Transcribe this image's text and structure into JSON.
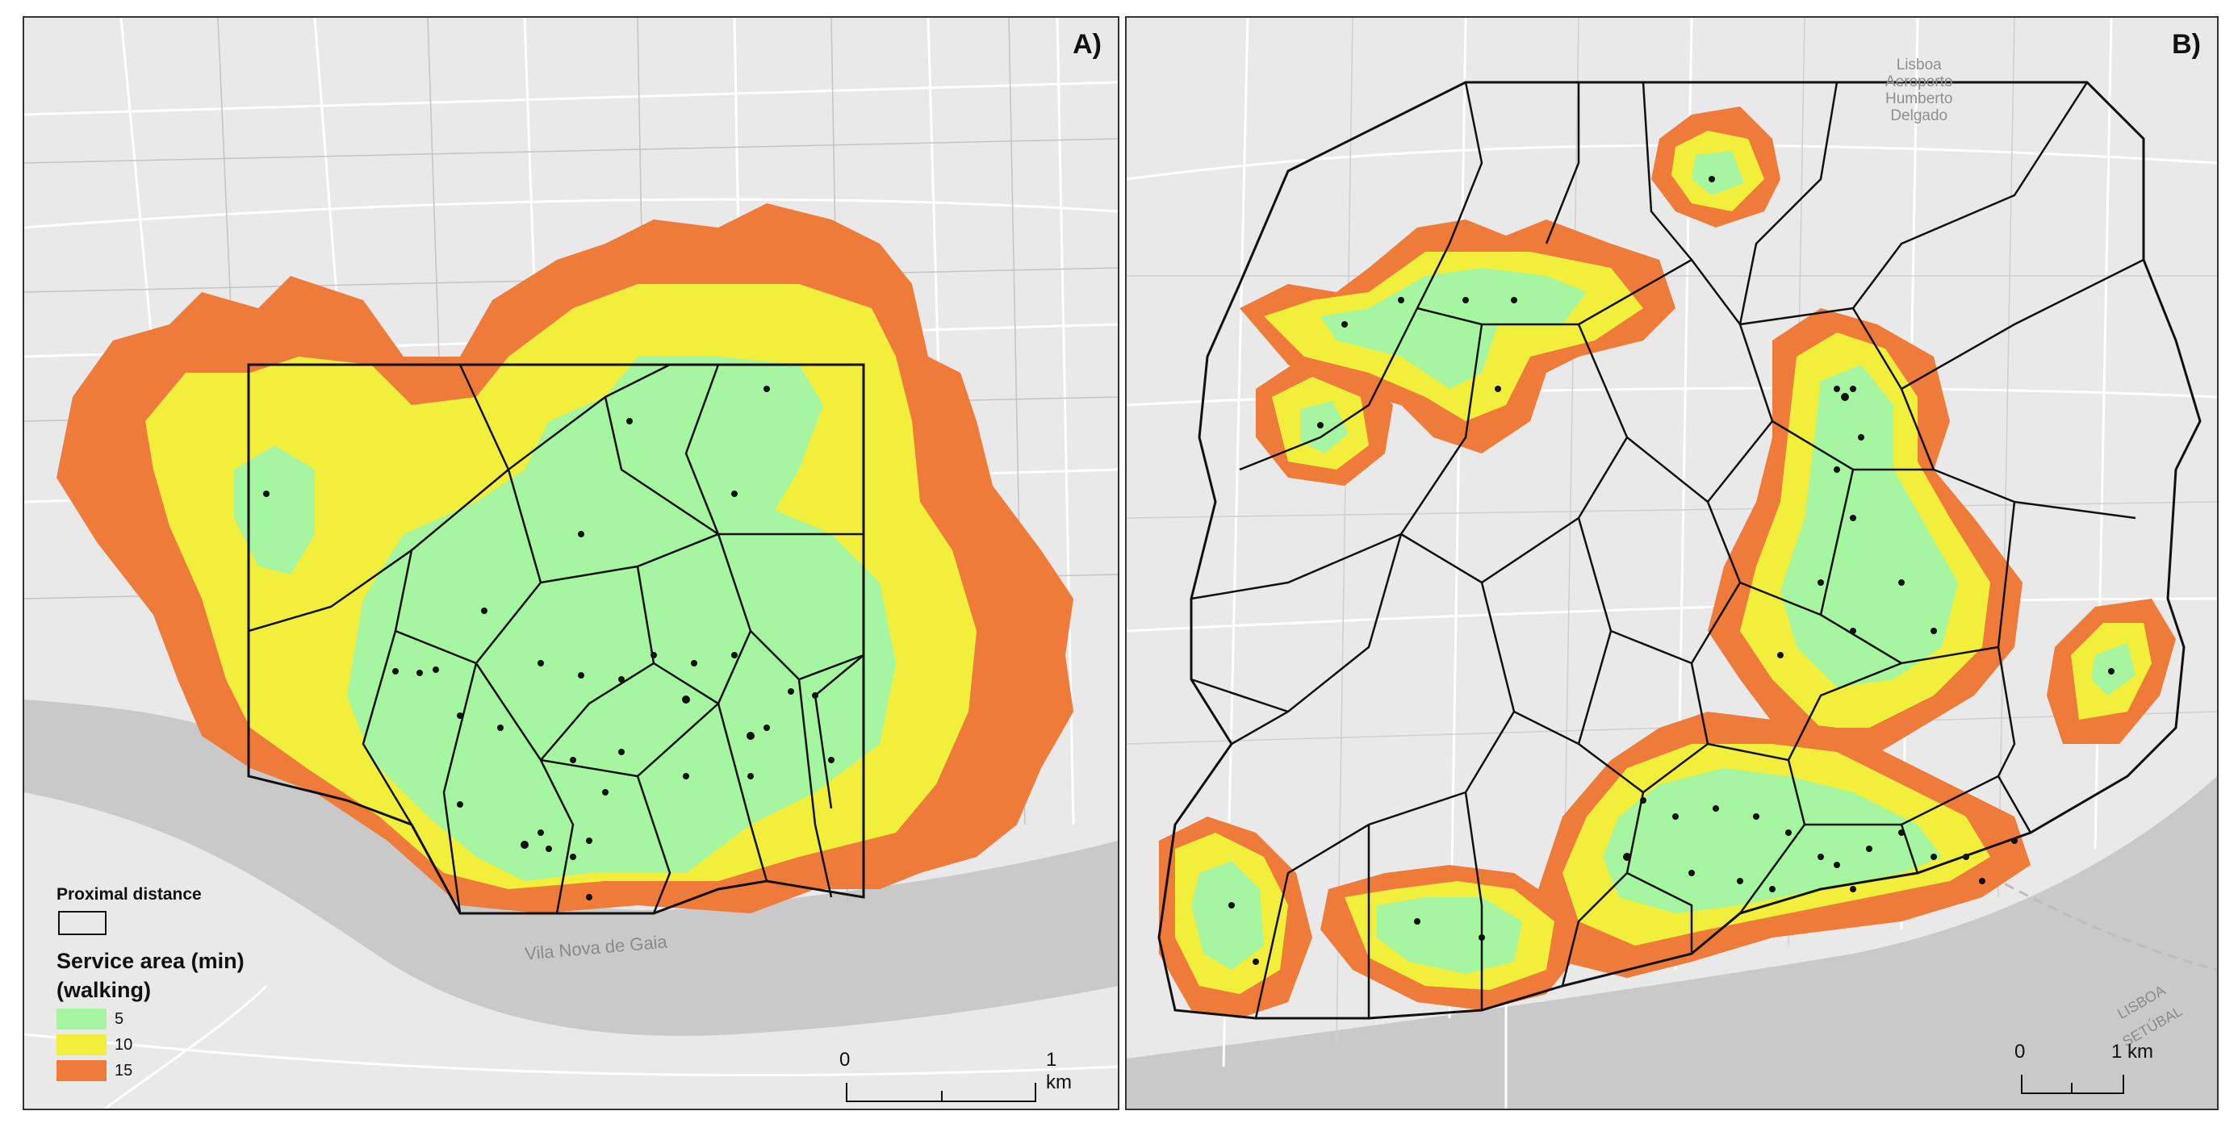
{
  "panels": [
    {
      "id": "A",
      "label": "A)",
      "water_label": "Vila Nova de Gaia",
      "scalebar": {
        "start": "0",
        "end": "1 km"
      }
    },
    {
      "id": "B",
      "label": "B)",
      "place_label": "Lisboa\nAeroporto\nHumberto\nDelgado",
      "road_labels": [
        "LISBOA",
        "SETÚBAL"
      ],
      "scalebar": {
        "start": "0",
        "end": "1 km"
      }
    }
  ],
  "legend": {
    "boundary_title": "Proximal distance",
    "service_title_line1": "Service area (min)",
    "service_title_line2": "(walking)",
    "classes": [
      {
        "label": "5",
        "color": "#a6f5a0"
      },
      {
        "label": "10",
        "color": "#f2ee3c"
      },
      {
        "label": "15",
        "color": "#ef7b3a"
      }
    ]
  },
  "colors": {
    "land": "#e9e9e9",
    "water": "#c9c9c9",
    "roads": "#ffffff",
    "boundary": "#111111"
  }
}
